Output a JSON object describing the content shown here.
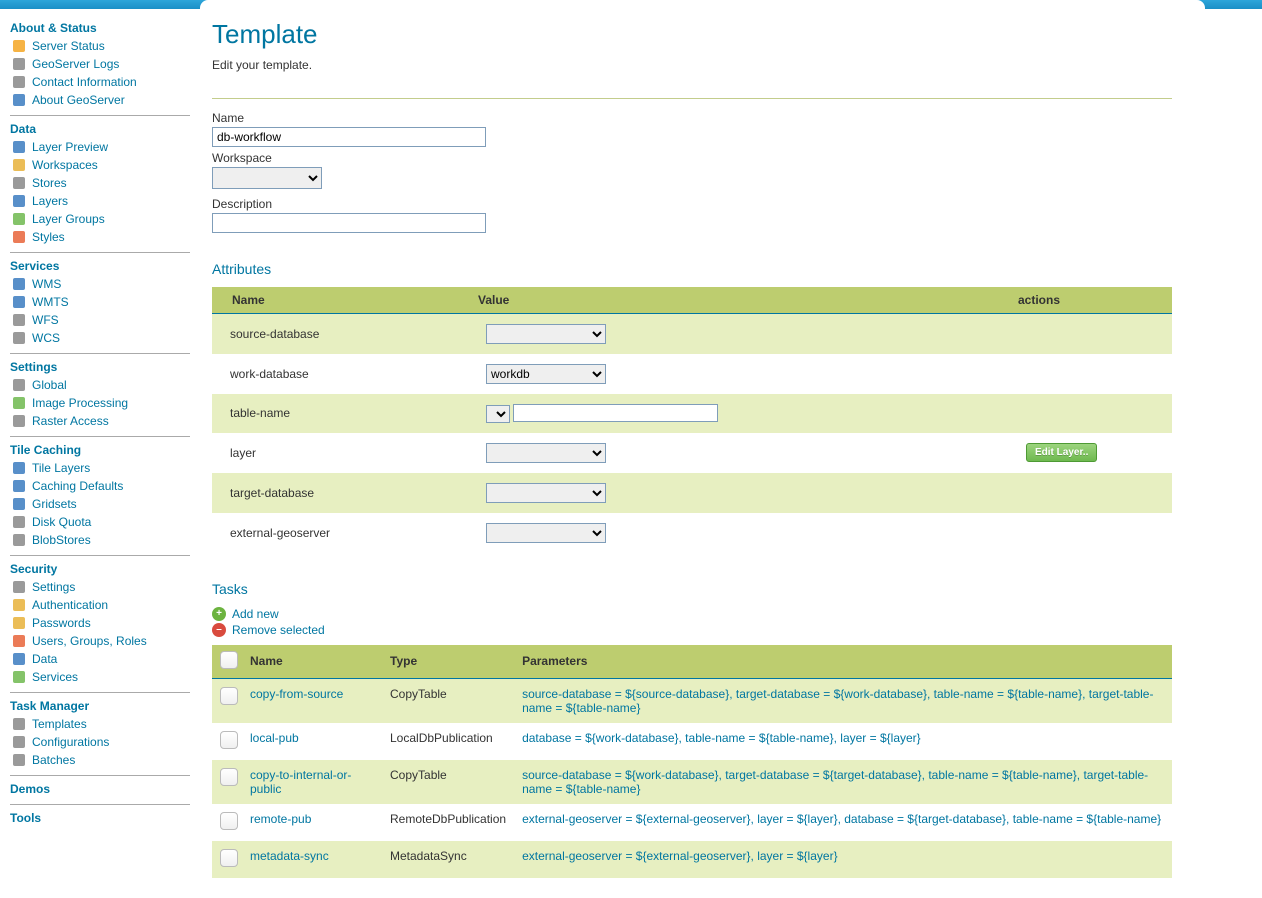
{
  "page": {
    "title": "Template",
    "subtitle": "Edit your template."
  },
  "colors": {
    "link": "#0076a1",
    "header_band": "#bdcd6f",
    "row_odd": "#e7efc1",
    "topbar": "#2da5da"
  },
  "sidebar": {
    "sections": [
      {
        "title": "About & Status",
        "items": [
          {
            "label": "Server Status",
            "icon": "warning"
          },
          {
            "label": "GeoServer Logs",
            "icon": "doc"
          },
          {
            "label": "Contact Information",
            "icon": "card"
          },
          {
            "label": "About GeoServer",
            "icon": "globe"
          }
        ]
      },
      {
        "title": "Data",
        "items": [
          {
            "label": "Layer Preview",
            "icon": "layer-preview"
          },
          {
            "label": "Workspaces",
            "icon": "folder"
          },
          {
            "label": "Stores",
            "icon": "db"
          },
          {
            "label": "Layers",
            "icon": "layers"
          },
          {
            "label": "Layer Groups",
            "icon": "layer-groups"
          },
          {
            "label": "Styles",
            "icon": "palette"
          }
        ]
      },
      {
        "title": "Services",
        "items": [
          {
            "label": "WMS",
            "icon": "wms"
          },
          {
            "label": "WMTS",
            "icon": "wmts"
          },
          {
            "label": "WFS",
            "icon": "wfs"
          },
          {
            "label": "WCS",
            "icon": "wcs"
          }
        ]
      },
      {
        "title": "Settings",
        "items": [
          {
            "label": "Global",
            "icon": "gear"
          },
          {
            "label": "Image Processing",
            "icon": "image"
          },
          {
            "label": "Raster Access",
            "icon": "raster"
          }
        ]
      },
      {
        "title": "Tile Caching",
        "items": [
          {
            "label": "Tile Layers",
            "icon": "tiles"
          },
          {
            "label": "Caching Defaults",
            "icon": "globe-small"
          },
          {
            "label": "Gridsets",
            "icon": "grid"
          },
          {
            "label": "Disk Quota",
            "icon": "disk"
          },
          {
            "label": "BlobStores",
            "icon": "blob"
          }
        ]
      },
      {
        "title": "Security",
        "items": [
          {
            "label": "Settings",
            "icon": "wrench"
          },
          {
            "label": "Authentication",
            "icon": "shield"
          },
          {
            "label": "Passwords",
            "icon": "lock"
          },
          {
            "label": "Users, Groups, Roles",
            "icon": "users"
          },
          {
            "label": "Data",
            "icon": "data-sec"
          },
          {
            "label": "Services",
            "icon": "serv-sec"
          }
        ]
      },
      {
        "title": "Task Manager",
        "items": [
          {
            "label": "Templates",
            "icon": "wrench"
          },
          {
            "label": "Configurations",
            "icon": "wrench"
          },
          {
            "label": "Batches",
            "icon": "wrench"
          }
        ]
      },
      {
        "title": "Demos",
        "items": []
      },
      {
        "title": "Tools",
        "items": []
      }
    ]
  },
  "form": {
    "name_label": "Name",
    "name_value": "db-workflow",
    "workspace_label": "Workspace",
    "workspace_value": "",
    "description_label": "Description",
    "description_value": ""
  },
  "attributes": {
    "heading": "Attributes",
    "col_name": "Name",
    "col_value": "Value",
    "col_actions": "actions",
    "rows": [
      {
        "name": "source-database",
        "kind": "select",
        "value": ""
      },
      {
        "name": "work-database",
        "kind": "select",
        "value": "workdb"
      },
      {
        "name": "table-name",
        "kind": "select+text",
        "value": ""
      },
      {
        "name": "layer",
        "kind": "select",
        "value": "",
        "action": "Edit Layer.."
      },
      {
        "name": "target-database",
        "kind": "select",
        "value": ""
      },
      {
        "name": "external-geoserver",
        "kind": "select",
        "value": ""
      }
    ]
  },
  "tasks": {
    "heading": "Tasks",
    "add_label": "Add new",
    "remove_label": "Remove selected",
    "col_name": "Name",
    "col_type": "Type",
    "col_params": "Parameters",
    "rows": [
      {
        "name": "copy-from-source",
        "type": "CopyTable",
        "params": "source-database = ${source-database}, target-database = ${work-database}, table-name = ${table-name}, target-table-name = ${table-name}"
      },
      {
        "name": "local-pub",
        "type": "LocalDbPublication",
        "params": "database = ${work-database}, table-name = ${table-name}, layer = ${layer}"
      },
      {
        "name": "copy-to-internal-or-public",
        "type": "CopyTable",
        "params": "source-database = ${work-database}, target-database = ${target-database}, table-name = ${table-name}, target-table-name = ${table-name}"
      },
      {
        "name": "remote-pub",
        "type": "RemoteDbPublication",
        "params": "external-geoserver = ${external-geoserver}, layer = ${layer}, database = ${target-database}, table-name = ${table-name}"
      },
      {
        "name": "metadata-sync",
        "type": "MetadataSync",
        "params": "external-geoserver = ${external-geoserver}, layer = ${layer}"
      }
    ]
  }
}
